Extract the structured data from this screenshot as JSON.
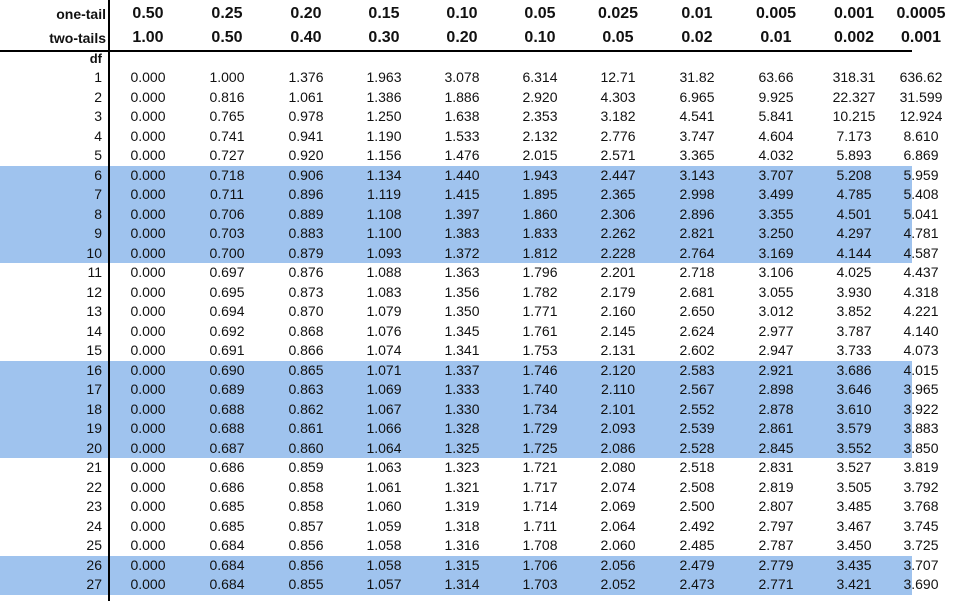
{
  "table": {
    "one_tail_label": "one-tail",
    "two_tails_label": "two-tails",
    "df_label": "df",
    "one_tail": [
      "0.50",
      "0.25",
      "0.20",
      "0.15",
      "0.10",
      "0.05",
      "0.025",
      "0.01",
      "0.005",
      "0.001",
      "0.0005"
    ],
    "two_tails": [
      "1.00",
      "0.50",
      "0.40",
      "0.30",
      "0.20",
      "0.10",
      "0.05",
      "0.02",
      "0.01",
      "0.002",
      "0.001"
    ],
    "rows": [
      {
        "df": "1",
        "values": [
          "0.000",
          "1.000",
          "1.376",
          "1.963",
          "3.078",
          "6.314",
          "12.71",
          "31.82",
          "63.66",
          "318.31",
          "636.62"
        ]
      },
      {
        "df": "2",
        "values": [
          "0.000",
          "0.816",
          "1.061",
          "1.386",
          "1.886",
          "2.920",
          "4.303",
          "6.965",
          "9.925",
          "22.327",
          "31.599"
        ]
      },
      {
        "df": "3",
        "values": [
          "0.000",
          "0.765",
          "0.978",
          "1.250",
          "1.638",
          "2.353",
          "3.182",
          "4.541",
          "5.841",
          "10.215",
          "12.924"
        ]
      },
      {
        "df": "4",
        "values": [
          "0.000",
          "0.741",
          "0.941",
          "1.190",
          "1.533",
          "2.132",
          "2.776",
          "3.747",
          "4.604",
          "7.173",
          "8.610"
        ]
      },
      {
        "df": "5",
        "values": [
          "0.000",
          "0.727",
          "0.920",
          "1.156",
          "1.476",
          "2.015",
          "2.571",
          "3.365",
          "4.032",
          "5.893",
          "6.869"
        ]
      },
      {
        "df": "6",
        "values": [
          "0.000",
          "0.718",
          "0.906",
          "1.134",
          "1.440",
          "1.943",
          "2.447",
          "3.143",
          "3.707",
          "5.208",
          "5.959"
        ]
      },
      {
        "df": "7",
        "values": [
          "0.000",
          "0.711",
          "0.896",
          "1.119",
          "1.415",
          "1.895",
          "2.365",
          "2.998",
          "3.499",
          "4.785",
          "5.408"
        ]
      },
      {
        "df": "8",
        "values": [
          "0.000",
          "0.706",
          "0.889",
          "1.108",
          "1.397",
          "1.860",
          "2.306",
          "2.896",
          "3.355",
          "4.501",
          "5.041"
        ]
      },
      {
        "df": "9",
        "values": [
          "0.000",
          "0.703",
          "0.883",
          "1.100",
          "1.383",
          "1.833",
          "2.262",
          "2.821",
          "3.250",
          "4.297",
          "4.781"
        ]
      },
      {
        "df": "10",
        "values": [
          "0.000",
          "0.700",
          "0.879",
          "1.093",
          "1.372",
          "1.812",
          "2.228",
          "2.764",
          "3.169",
          "4.144",
          "4.587"
        ]
      },
      {
        "df": "11",
        "values": [
          "0.000",
          "0.697",
          "0.876",
          "1.088",
          "1.363",
          "1.796",
          "2.201",
          "2.718",
          "3.106",
          "4.025",
          "4.437"
        ]
      },
      {
        "df": "12",
        "values": [
          "0.000",
          "0.695",
          "0.873",
          "1.083",
          "1.356",
          "1.782",
          "2.179",
          "2.681",
          "3.055",
          "3.930",
          "4.318"
        ]
      },
      {
        "df": "13",
        "values": [
          "0.000",
          "0.694",
          "0.870",
          "1.079",
          "1.350",
          "1.771",
          "2.160",
          "2.650",
          "3.012",
          "3.852",
          "4.221"
        ]
      },
      {
        "df": "14",
        "values": [
          "0.000",
          "0.692",
          "0.868",
          "1.076",
          "1.345",
          "1.761",
          "2.145",
          "2.624",
          "2.977",
          "3.787",
          "4.140"
        ]
      },
      {
        "df": "15",
        "values": [
          "0.000",
          "0.691",
          "0.866",
          "1.074",
          "1.341",
          "1.753",
          "2.131",
          "2.602",
          "2.947",
          "3.733",
          "4.073"
        ]
      },
      {
        "df": "16",
        "values": [
          "0.000",
          "0.690",
          "0.865",
          "1.071",
          "1.337",
          "1.746",
          "2.120",
          "2.583",
          "2.921",
          "3.686",
          "4.015"
        ]
      },
      {
        "df": "17",
        "values": [
          "0.000",
          "0.689",
          "0.863",
          "1.069",
          "1.333",
          "1.740",
          "2.110",
          "2.567",
          "2.898",
          "3.646",
          "3.965"
        ]
      },
      {
        "df": "18",
        "values": [
          "0.000",
          "0.688",
          "0.862",
          "1.067",
          "1.330",
          "1.734",
          "2.101",
          "2.552",
          "2.878",
          "3.610",
          "3.922"
        ]
      },
      {
        "df": "19",
        "values": [
          "0.000",
          "0.688",
          "0.861",
          "1.066",
          "1.328",
          "1.729",
          "2.093",
          "2.539",
          "2.861",
          "3.579",
          "3.883"
        ]
      },
      {
        "df": "20",
        "values": [
          "0.000",
          "0.687",
          "0.860",
          "1.064",
          "1.325",
          "1.725",
          "2.086",
          "2.528",
          "2.845",
          "3.552",
          "3.850"
        ]
      },
      {
        "df": "21",
        "values": [
          "0.000",
          "0.686",
          "0.859",
          "1.063",
          "1.323",
          "1.721",
          "2.080",
          "2.518",
          "2.831",
          "3.527",
          "3.819"
        ]
      },
      {
        "df": "22",
        "values": [
          "0.000",
          "0.686",
          "0.858",
          "1.061",
          "1.321",
          "1.717",
          "2.074",
          "2.508",
          "2.819",
          "3.505",
          "3.792"
        ]
      },
      {
        "df": "23",
        "values": [
          "0.000",
          "0.685",
          "0.858",
          "1.060",
          "1.319",
          "1.714",
          "2.069",
          "2.500",
          "2.807",
          "3.485",
          "3.768"
        ]
      },
      {
        "df": "24",
        "values": [
          "0.000",
          "0.685",
          "0.857",
          "1.059",
          "1.318",
          "1.711",
          "2.064",
          "2.492",
          "2.797",
          "3.467",
          "3.745"
        ]
      },
      {
        "df": "25",
        "values": [
          "0.000",
          "0.684",
          "0.856",
          "1.058",
          "1.316",
          "1.708",
          "2.060",
          "2.485",
          "2.787",
          "3.450",
          "3.725"
        ]
      },
      {
        "df": "26",
        "values": [
          "0.000",
          "0.684",
          "0.856",
          "1.058",
          "1.315",
          "1.706",
          "2.056",
          "2.479",
          "2.779",
          "3.435",
          "3.707"
        ]
      },
      {
        "df": "27",
        "values": [
          "0.000",
          "0.684",
          "0.855",
          "1.057",
          "1.314",
          "1.703",
          "2.052",
          "2.473",
          "2.771",
          "3.421",
          "3.690"
        ]
      }
    ],
    "band_color": "#9fc3ee"
  }
}
